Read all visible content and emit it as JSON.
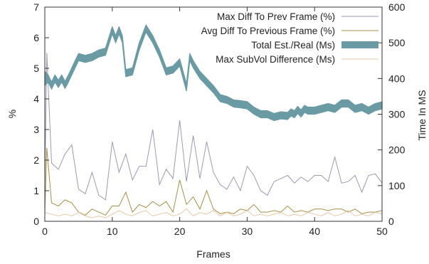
{
  "chart_data": {
    "type": "line",
    "xlabel": "Frames",
    "ylabel": "%",
    "y2label": "Time In MS",
    "xlim": [
      0,
      50
    ],
    "ylim": [
      0,
      7
    ],
    "y2lim": [
      0,
      600
    ],
    "x_ticks": [
      0,
      10,
      20,
      30,
      40,
      50
    ],
    "y_ticks": [
      0,
      1,
      2,
      3,
      4,
      5,
      6,
      7
    ],
    "y2_ticks": [
      0,
      100,
      200,
      300,
      400,
      500,
      600
    ],
    "grid": false,
    "legend_position": "top-right",
    "series": [
      {
        "name": "Max Diff To Prev Frame (%)",
        "axis": "left",
        "color": "#9a9ab4",
        "x": [
          0,
          0.3,
          1,
          2,
          3,
          4,
          5,
          6,
          7,
          8,
          9,
          10,
          11,
          12,
          13,
          14,
          15,
          16,
          17,
          18,
          19,
          20,
          21,
          22,
          23,
          24,
          25,
          26,
          27,
          28,
          29,
          30,
          31,
          32,
          33,
          34,
          35,
          36,
          37,
          38,
          39,
          40,
          41,
          42,
          43,
          44,
          45,
          46,
          47,
          48,
          49,
          50
        ],
        "values": [
          1.2,
          5.5,
          1.9,
          1.7,
          2.2,
          2.5,
          1.05,
          0.9,
          1.6,
          0.85,
          0.7,
          2.6,
          1.6,
          2.2,
          1.35,
          1.8,
          1.8,
          3.0,
          1.2,
          1.7,
          1.4,
          3.3,
          1.3,
          2.8,
          1.4,
          2.6,
          1.6,
          1.2,
          1.05,
          1.45,
          1.0,
          1.8,
          1.5,
          1.0,
          0.85,
          1.3,
          1.4,
          1.5,
          1.25,
          1.45,
          1.3,
          1.5,
          1.5,
          1.3,
          2.1,
          1.25,
          1.3,
          1.5,
          0.95,
          1.5,
          1.55,
          1.25
        ]
      },
      {
        "name": "Avg Diff To Previous Frame (%)",
        "axis": "left",
        "color": "#a88f47",
        "x": [
          0,
          0.3,
          1,
          2,
          3,
          4,
          5,
          6,
          7,
          8,
          9,
          10,
          11,
          12,
          13,
          14,
          15,
          16,
          17,
          18,
          19,
          20,
          21,
          22,
          23,
          24,
          25,
          26,
          27,
          28,
          29,
          30,
          31,
          32,
          33,
          34,
          35,
          36,
          37,
          38,
          39,
          40,
          41,
          42,
          43,
          44,
          45,
          46,
          47,
          48,
          49,
          50
        ],
        "values": [
          0.3,
          2.4,
          0.6,
          0.5,
          0.7,
          0.6,
          0.3,
          0.2,
          0.4,
          0.3,
          0.2,
          0.5,
          0.5,
          0.95,
          0.3,
          0.55,
          0.45,
          0.65,
          0.5,
          0.65,
          0.3,
          1.35,
          0.55,
          0.8,
          0.4,
          1.0,
          0.4,
          0.25,
          0.3,
          0.25,
          0.4,
          0.35,
          0.55,
          0.3,
          0.3,
          0.35,
          0.3,
          0.5,
          0.3,
          0.35,
          0.3,
          0.4,
          0.4,
          0.35,
          0.4,
          0.4,
          0.3,
          0.4,
          0.25,
          0.3,
          0.3,
          0.35
        ]
      },
      {
        "name": "Total Est./Real (Ms)",
        "axis": "right",
        "color": "#6a9ba4",
        "style": "band",
        "x": [
          0,
          0.5,
          1,
          1.5,
          2,
          2.5,
          3,
          3.5,
          4,
          5,
          6,
          7,
          8,
          9,
          10,
          10.5,
          11,
          11.5,
          12,
          13,
          14,
          15,
          16,
          17,
          18,
          19,
          20,
          21,
          21.5,
          22,
          23,
          24,
          25,
          26,
          27,
          28,
          29,
          30,
          31,
          32,
          33,
          34,
          35,
          36,
          36.5,
          37,
          37.5,
          38,
          38.5,
          39,
          40,
          41,
          42,
          43,
          44,
          45,
          46,
          47,
          48,
          49,
          50
        ],
        "upper": [
          420,
          410,
          390,
          410,
          395,
          410,
          392,
          410,
          430,
          470,
          465,
          470,
          480,
          485,
          545,
          520,
          545,
          520,
          425,
          430,
          500,
          550,
          520,
          480,
          430,
          435,
          455,
          385,
          470,
          450,
          420,
          400,
          380,
          355,
          350,
          340,
          338,
          335,
          320,
          310,
          310,
          302,
          307,
          305,
          315,
          310,
          322,
          312,
          325,
          320,
          320,
          325,
          330,
          325,
          340,
          340,
          325,
          330,
          320,
          330,
          335
        ],
        "lower": [
          380,
          390,
          370,
          390,
          375,
          390,
          372,
          390,
          410,
          450,
          445,
          450,
          460,
          465,
          525,
          500,
          525,
          500,
          405,
          410,
          480,
          530,
          500,
          460,
          410,
          415,
          435,
          365,
          450,
          430,
          400,
          380,
          360,
          335,
          330,
          320,
          318,
          315,
          300,
          290,
          290,
          282,
          287,
          285,
          295,
          290,
          302,
          292,
          305,
          300,
          300,
          305,
          310,
          305,
          320,
          320,
          305,
          310,
          300,
          310,
          315
        ]
      },
      {
        "name": "Max SubVol Difference (Ms)",
        "axis": "right",
        "color": "#e8c9a8",
        "x": [
          0,
          1,
          2,
          3,
          4,
          5,
          6,
          7,
          8,
          9,
          10,
          11,
          12,
          13,
          14,
          15,
          16,
          17,
          18,
          19,
          20,
          21,
          22,
          23,
          24,
          25,
          26,
          27,
          28,
          29,
          30,
          31,
          32,
          33,
          34,
          35,
          36,
          37,
          38,
          39,
          40,
          41,
          42,
          43,
          44,
          45,
          46,
          47,
          48,
          49,
          50
        ],
        "values": [
          25,
          20,
          15,
          20,
          15,
          25,
          15,
          10,
          15,
          10,
          20,
          30,
          20,
          15,
          25,
          30,
          15,
          20,
          25,
          15,
          20,
          35,
          15,
          25,
          20,
          30,
          15,
          25,
          15,
          20,
          30,
          15,
          20,
          15,
          20,
          25,
          15,
          20,
          15,
          25,
          20,
          15,
          25,
          15,
          20,
          30,
          15,
          20,
          15,
          25,
          20
        ]
      }
    ]
  }
}
